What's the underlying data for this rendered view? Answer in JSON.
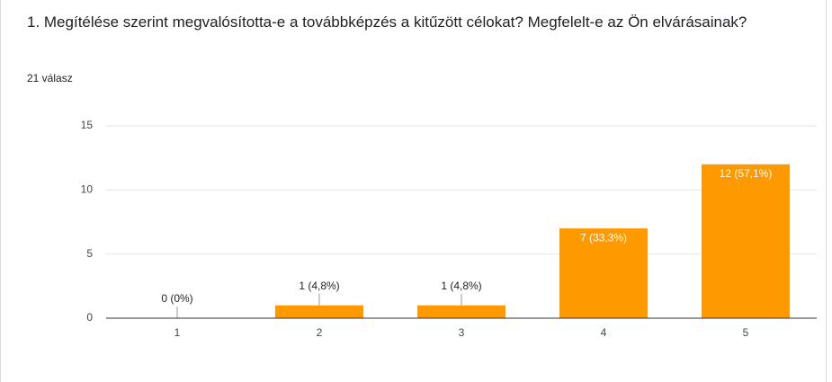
{
  "chart_data": {
    "type": "bar",
    "title": "1. Megítélése szerint megvalósította-e a továbbképzés a kitűzött célokat? Megfelelt-e az Ön elvárásainak?",
    "subtitle": "21 válasz",
    "categories": [
      "1",
      "2",
      "3",
      "4",
      "5"
    ],
    "values": [
      0,
      1,
      1,
      7,
      12
    ],
    "value_labels": [
      "0 (0%)",
      "1 (4,8%)",
      "1 (4,8%)",
      "7 (33,3%)",
      "12 (57,1%)"
    ],
    "color": "#ff9900",
    "ylim": [
      0,
      15
    ],
    "yticks": [
      0,
      5,
      10,
      15
    ],
    "grid": true
  }
}
